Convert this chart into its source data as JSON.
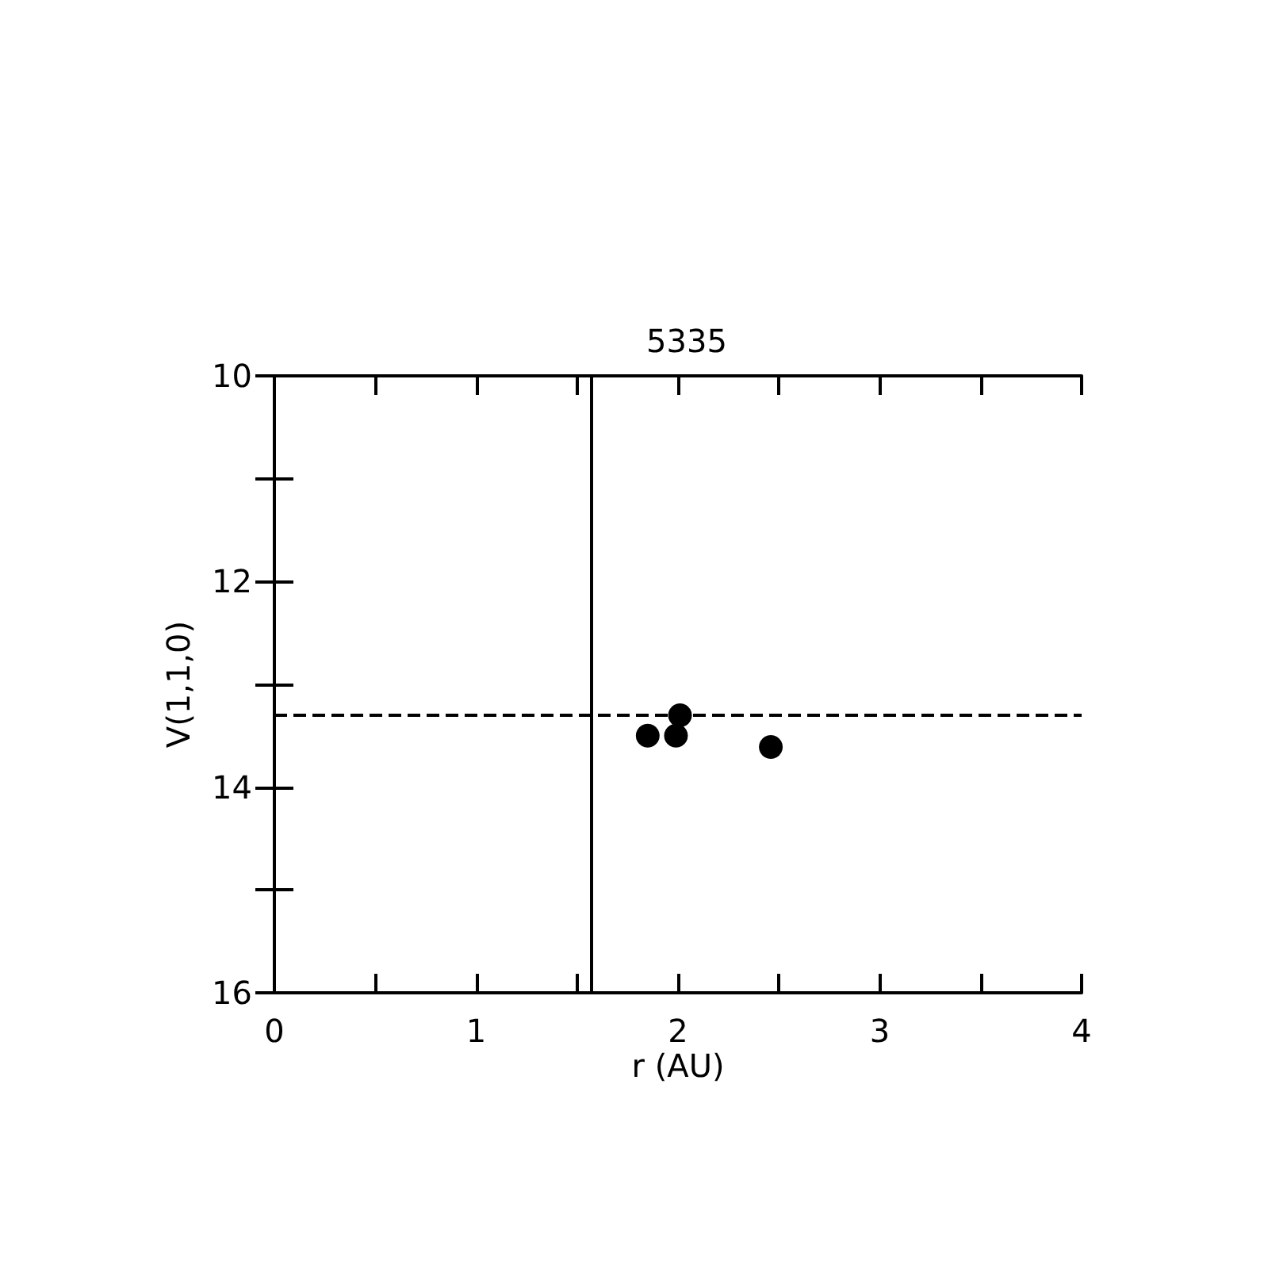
{
  "chart_data": {
    "type": "scatter",
    "title": "5335",
    "xlabel": "r (AU)",
    "ylabel": "V(1,1,0)",
    "x": [
      1.85,
      1.99,
      2.01,
      2.46
    ],
    "series": [
      {
        "color": "#000000",
        "values": [
          13.5,
          13.5,
          13.3,
          13.61
        ]
      }
    ],
    "xlim": [
      0,
      4
    ],
    "ylim": [
      16,
      10
    ],
    "xticks": [
      0,
      {
        "value": 0.5,
        "label": null
      },
      1,
      {
        "value": 1.5,
        "label": null
      },
      2,
      {
        "value": 2.5,
        "label": null
      },
      3,
      {
        "value": 3.5,
        "label": null
      },
      4
    ],
    "yticks": [
      10,
      {
        "value": 11,
        "label": null
      },
      12,
      {
        "value": 13,
        "label": null
      },
      14,
      {
        "value": 15,
        "label": null
      },
      16
    ],
    "ref_lines": [
      {
        "axis": "x",
        "value": 1.57,
        "line_style": "solid"
      },
      {
        "axis": "y",
        "value": 13.29,
        "line_style": "dashed"
      }
    ],
    "marker": "circle"
  }
}
